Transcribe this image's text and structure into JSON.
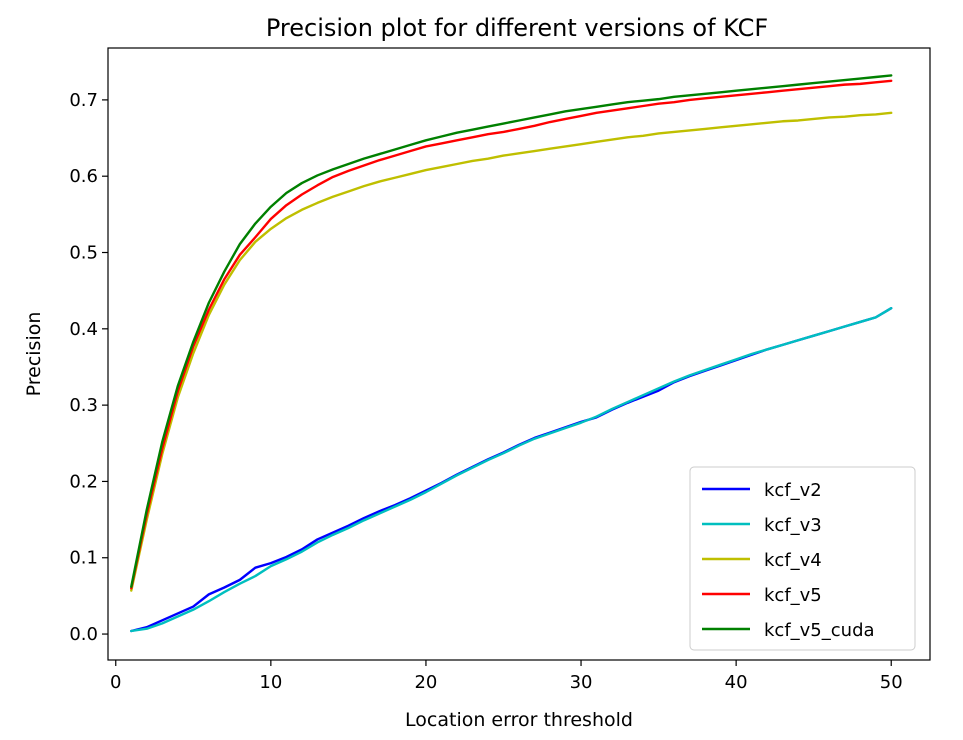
{
  "chart_data": {
    "type": "line",
    "title": "Precision plot for different versions of KCF",
    "xlabel": "Location error threshold",
    "ylabel": "Precision",
    "xlim": [
      -0.5,
      52.5
    ],
    "ylim": [
      -0.034,
      0.768
    ],
    "xticks": [
      0,
      10,
      20,
      30,
      40,
      50
    ],
    "yticks": [
      0.0,
      0.1,
      0.2,
      0.3,
      0.4,
      0.5,
      0.6,
      0.7
    ],
    "ytick_labels": [
      "0.0",
      "0.1",
      "0.2",
      "0.3",
      "0.4",
      "0.5",
      "0.6",
      "0.7"
    ],
    "grid": false,
    "legend_position": "lower-right",
    "x": [
      1,
      2,
      3,
      4,
      5,
      6,
      7,
      8,
      9,
      10,
      11,
      12,
      13,
      14,
      15,
      16,
      17,
      18,
      19,
      20,
      21,
      22,
      23,
      24,
      25,
      26,
      27,
      28,
      29,
      30,
      31,
      32,
      33,
      34,
      35,
      36,
      37,
      38,
      39,
      40,
      41,
      42,
      43,
      44,
      45,
      46,
      47,
      48,
      49,
      50
    ],
    "series": [
      {
        "name": "kcf_v2",
        "color": "#0000ff",
        "values": [
          0.004,
          0.009,
          0.018,
          0.027,
          0.036,
          0.052,
          0.061,
          0.071,
          0.087,
          0.093,
          0.101,
          0.111,
          0.124,
          0.133,
          0.142,
          0.152,
          0.161,
          0.169,
          0.178,
          0.188,
          0.198,
          0.209,
          0.219,
          0.229,
          0.238,
          0.248,
          0.257,
          0.264,
          0.271,
          0.278,
          0.284,
          0.294,
          0.303,
          0.311,
          0.319,
          0.33,
          0.338,
          0.345,
          0.352,
          0.359,
          0.366,
          0.373,
          0.379,
          0.385,
          0.391,
          0.397,
          0.403,
          0.409,
          0.415,
          0.427
        ]
      },
      {
        "name": "kcf_v3",
        "color": "#00bfbf",
        "values": [
          0.004,
          0.007,
          0.014,
          0.023,
          0.032,
          0.043,
          0.055,
          0.066,
          0.076,
          0.089,
          0.098,
          0.108,
          0.12,
          0.13,
          0.139,
          0.149,
          0.158,
          0.167,
          0.176,
          0.186,
          0.197,
          0.208,
          0.218,
          0.228,
          0.237,
          0.247,
          0.256,
          0.263,
          0.27,
          0.277,
          0.285,
          0.295,
          0.304,
          0.313,
          0.322,
          0.331,
          0.339,
          0.346,
          0.353,
          0.36,
          0.367,
          0.373,
          0.379,
          0.385,
          0.391,
          0.397,
          0.403,
          0.409,
          0.415,
          0.427
        ]
      },
      {
        "name": "kcf_v4",
        "color": "#bfbf00",
        "values": [
          0.057,
          0.15,
          0.236,
          0.31,
          0.368,
          0.418,
          0.458,
          0.49,
          0.514,
          0.531,
          0.545,
          0.556,
          0.565,
          0.573,
          0.58,
          0.587,
          0.593,
          0.598,
          0.603,
          0.608,
          0.612,
          0.616,
          0.62,
          0.623,
          0.627,
          0.63,
          0.633,
          0.636,
          0.639,
          0.642,
          0.645,
          0.648,
          0.651,
          0.653,
          0.656,
          0.658,
          0.66,
          0.662,
          0.664,
          0.666,
          0.668,
          0.67,
          0.672,
          0.673,
          0.675,
          0.677,
          0.678,
          0.68,
          0.681,
          0.683
        ]
      },
      {
        "name": "kcf_v5",
        "color": "#ff0000",
        "values": [
          0.06,
          0.157,
          0.243,
          0.318,
          0.377,
          0.425,
          0.465,
          0.497,
          0.52,
          0.544,
          0.562,
          0.576,
          0.588,
          0.599,
          0.607,
          0.614,
          0.621,
          0.627,
          0.633,
          0.639,
          0.643,
          0.647,
          0.651,
          0.655,
          0.658,
          0.662,
          0.666,
          0.671,
          0.675,
          0.679,
          0.683,
          0.686,
          0.689,
          0.692,
          0.695,
          0.697,
          0.7,
          0.702,
          0.704,
          0.706,
          0.708,
          0.71,
          0.712,
          0.714,
          0.716,
          0.718,
          0.72,
          0.721,
          0.723,
          0.725
        ]
      },
      {
        "name": "kcf_v5_cuda",
        "color": "#008000",
        "values": [
          0.062,
          0.163,
          0.252,
          0.325,
          0.383,
          0.434,
          0.475,
          0.511,
          0.538,
          0.56,
          0.578,
          0.591,
          0.601,
          0.609,
          0.616,
          0.623,
          0.629,
          0.635,
          0.641,
          0.647,
          0.652,
          0.657,
          0.661,
          0.665,
          0.669,
          0.673,
          0.677,
          0.681,
          0.685,
          0.688,
          0.691,
          0.694,
          0.697,
          0.699,
          0.701,
          0.704,
          0.706,
          0.708,
          0.71,
          0.712,
          0.714,
          0.716,
          0.718,
          0.72,
          0.722,
          0.724,
          0.726,
          0.728,
          0.73,
          0.732
        ]
      }
    ]
  }
}
